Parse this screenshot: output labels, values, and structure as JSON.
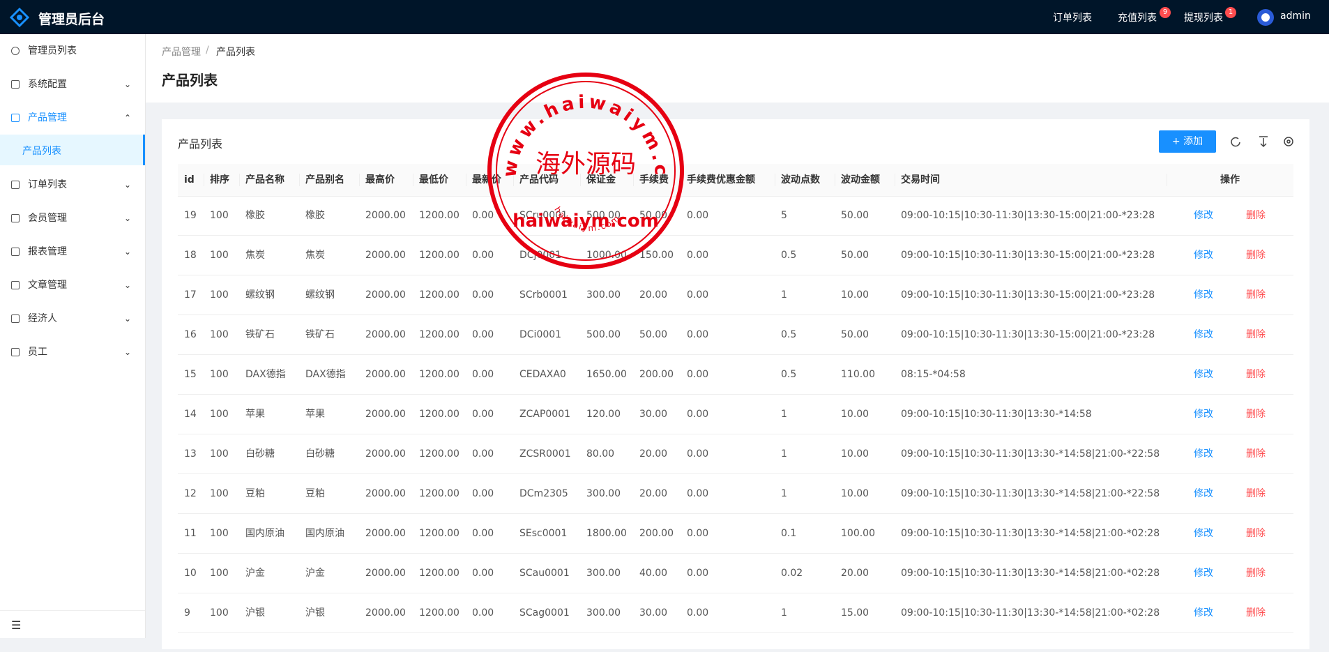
{
  "header": {
    "title": "管理员后台",
    "nav": [
      {
        "label": "订单列表"
      },
      {
        "label": "充值列表",
        "badge": "9"
      },
      {
        "label": "提现列表",
        "badge": "1"
      }
    ],
    "user": "admin"
  },
  "sidebar": {
    "items": [
      {
        "label": "管理员列表"
      },
      {
        "label": "系统配置"
      },
      {
        "label": "产品管理",
        "children": [
          "产品列表"
        ]
      },
      {
        "label": "订单列表"
      },
      {
        "label": "会员管理"
      },
      {
        "label": "报表管理"
      },
      {
        "label": "文章管理"
      },
      {
        "label": "经济人"
      },
      {
        "label": "员工"
      }
    ]
  },
  "breadcrumb": [
    "产品管理",
    "产品列表"
  ],
  "page_title": "产品列表",
  "card": {
    "title": "产品列表",
    "add_button": "添加"
  },
  "table": {
    "columns": [
      "id",
      "排序",
      "产品名称",
      "产品别名",
      "最高价",
      "最低价",
      "最新价",
      "产品代码",
      "保证金",
      "手续费",
      "手续费优惠金额",
      "波动点数",
      "波动金额",
      "交易时间",
      "操作"
    ],
    "actions": [
      "修改",
      "删除"
    ],
    "rows": [
      [
        "19",
        "100",
        "橡胶",
        "橡胶",
        "2000.00",
        "1200.00",
        "0.00",
        "SCru0001",
        "500.00",
        "50.00",
        "0.00",
        "5",
        "50.00",
        "09:00-10:15|10:30-11:30|13:30-15:00|21:00-*23:28"
      ],
      [
        "18",
        "100",
        "焦炭",
        "焦炭",
        "2000.00",
        "1200.00",
        "0.00",
        "DCj0001",
        "1000.00",
        "150.00",
        "0.00",
        "0.5",
        "50.00",
        "09:00-10:15|10:30-11:30|13:30-15:00|21:00-*23:28"
      ],
      [
        "17",
        "100",
        "螺纹钢",
        "螺纹钢",
        "2000.00",
        "1200.00",
        "0.00",
        "SCrb0001",
        "300.00",
        "20.00",
        "0.00",
        "1",
        "10.00",
        "09:00-10:15|10:30-11:30|13:30-15:00|21:00-*23:28"
      ],
      [
        "16",
        "100",
        "铁矿石",
        "铁矿石",
        "2000.00",
        "1200.00",
        "0.00",
        "DCi0001",
        "500.00",
        "50.00",
        "0.00",
        "0.5",
        "50.00",
        "09:00-10:15|10:30-11:30|13:30-15:00|21:00-*23:28"
      ],
      [
        "15",
        "100",
        "DAX德指",
        "DAX德指",
        "2000.00",
        "1200.00",
        "0.00",
        "CEDAXA0",
        "1650.00",
        "200.00",
        "0.00",
        "0.5",
        "110.00",
        "08:15-*04:58"
      ],
      [
        "14",
        "100",
        "苹果",
        "苹果",
        "2000.00",
        "1200.00",
        "0.00",
        "ZCAP0001",
        "120.00",
        "30.00",
        "0.00",
        "1",
        "10.00",
        "09:00-10:15|10:30-11:30|13:30-*14:58"
      ],
      [
        "13",
        "100",
        "白砂糖",
        "白砂糖",
        "2000.00",
        "1200.00",
        "0.00",
        "ZCSR0001",
        "80.00",
        "20.00",
        "0.00",
        "1",
        "10.00",
        "09:00-10:15|10:30-11:30|13:30-*14:58|21:00-*22:58"
      ],
      [
        "12",
        "100",
        "豆粕",
        "豆粕",
        "2000.00",
        "1200.00",
        "0.00",
        "DCm2305",
        "300.00",
        "20.00",
        "0.00",
        "1",
        "10.00",
        "09:00-10:15|10:30-11:30|13:30-*14:58|21:00-*22:58"
      ],
      [
        "11",
        "100",
        "国内原油",
        "国内原油",
        "2000.00",
        "1200.00",
        "0.00",
        "SEsc0001",
        "1800.00",
        "200.00",
        "0.00",
        "0.1",
        "100.00",
        "09:00-10:15|10:30-11:30|13:30-*14:58|21:00-*02:28"
      ],
      [
        "10",
        "100",
        "沪金",
        "沪金",
        "2000.00",
        "1200.00",
        "0.00",
        "SCau0001",
        "300.00",
        "40.00",
        "0.00",
        "0.02",
        "20.00",
        "09:00-10:15|10:30-11:30|13:30-*14:58|21:00-*02:28"
      ],
      [
        "9",
        "100",
        "沪银",
        "沪银",
        "2000.00",
        "1200.00",
        "0.00",
        "SCag0001",
        "300.00",
        "30.00",
        "0.00",
        "1",
        "15.00",
        "09:00-10:15|10:30-11:30|13:30-*14:58|21:00-*02:28"
      ]
    ]
  },
  "watermark": {
    "arc": "www.haiwaiym.com",
    "main": "海外源码",
    "domain": "haiwaiym.com",
    "small": "haiwaiym.com"
  }
}
